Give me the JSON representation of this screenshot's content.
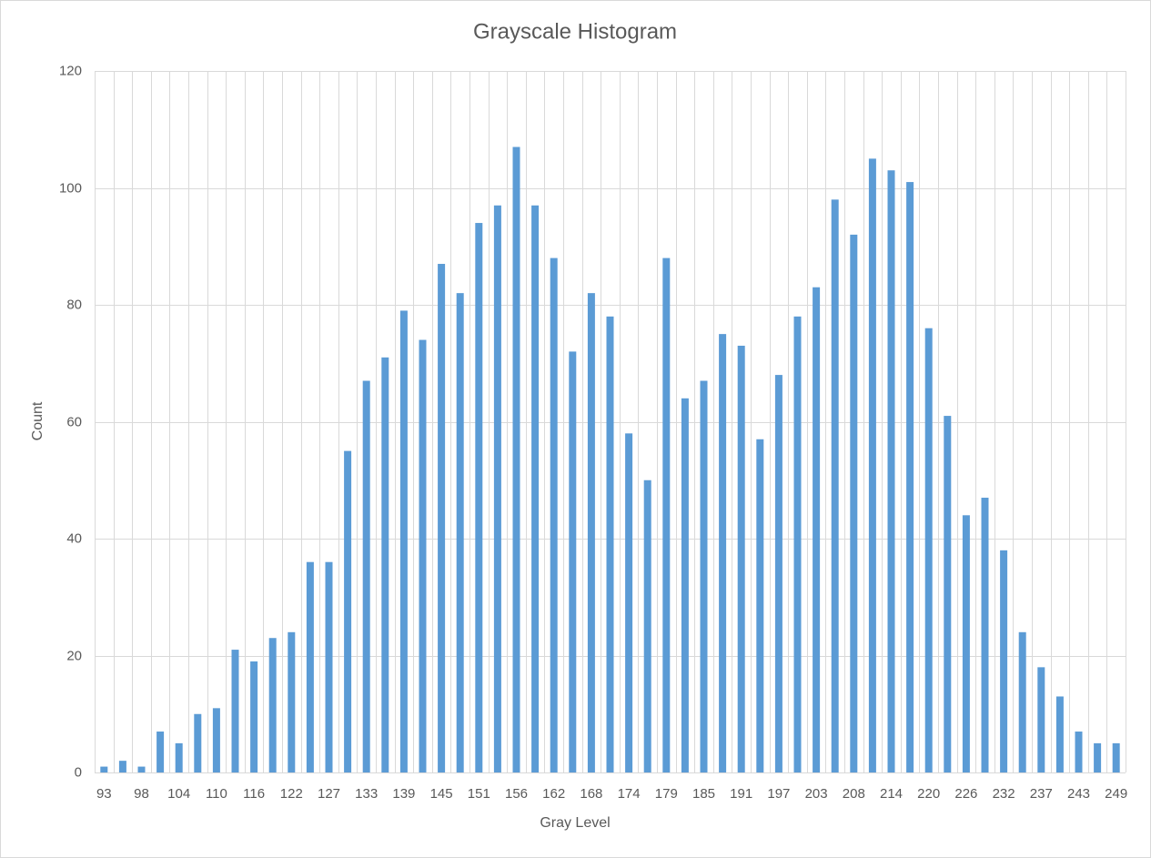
{
  "chart_data": {
    "type": "bar",
    "title": "Grayscale Histogram",
    "x_label": "Gray Level",
    "y_label": "Count",
    "categories": [
      "93",
      null,
      "98",
      null,
      "104",
      null,
      "110",
      null,
      "116",
      null,
      "122",
      null,
      "127",
      null,
      "133",
      null,
      "139",
      null,
      "145",
      null,
      "151",
      null,
      "156",
      null,
      "162",
      null,
      "168",
      null,
      "174",
      null,
      "179",
      null,
      "185",
      null,
      "191",
      null,
      "197",
      null,
      "203",
      null,
      "208",
      null,
      "214",
      null,
      "220",
      null,
      "226",
      null,
      "232",
      null,
      "237",
      null,
      "243",
      null,
      "249"
    ],
    "values": [
      1,
      2,
      1,
      7,
      5,
      10,
      11,
      21,
      19,
      23,
      24,
      36,
      36,
      55,
      67,
      71,
      79,
      74,
      87,
      82,
      94,
      97,
      107,
      97,
      88,
      72,
      82,
      78,
      58,
      50,
      88,
      64,
      67,
      75,
      73,
      57,
      68,
      78,
      83,
      98,
      92,
      105,
      103,
      101,
      76,
      61,
      44,
      47,
      38,
      24,
      18,
      13,
      7,
      5,
      5
    ],
    "color": "#5b9bd5",
    "ylim": [
      0,
      120
    ],
    "yticks": [
      0,
      20,
      40,
      60,
      80,
      100,
      120
    ],
    "grid": true
  }
}
